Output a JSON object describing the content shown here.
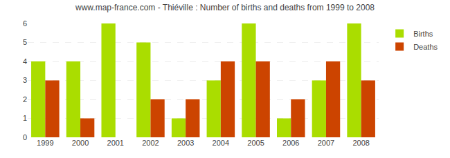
{
  "chart_data": {
    "type": "bar",
    "title": "www.map-france.com - Thiéville : Number of births and deaths from 1999 to 2008",
    "categories": [
      "1999",
      "2000",
      "2001",
      "2002",
      "2003",
      "2004",
      "2005",
      "2006",
      "2007",
      "2008"
    ],
    "series": [
      {
        "name": "Births",
        "color": "#aadd00",
        "values": [
          4,
          4,
          6,
          5,
          1,
          3,
          6,
          1,
          3,
          6
        ]
      },
      {
        "name": "Deaths",
        "color": "#cc4400",
        "values": [
          3,
          1,
          0,
          2,
          2,
          4,
          4,
          2,
          4,
          3
        ]
      }
    ],
    "ylim": [
      0,
      6
    ],
    "yticks": [
      0,
      1,
      2,
      3,
      4,
      5,
      6
    ],
    "grid": true,
    "legend": "upper right"
  }
}
